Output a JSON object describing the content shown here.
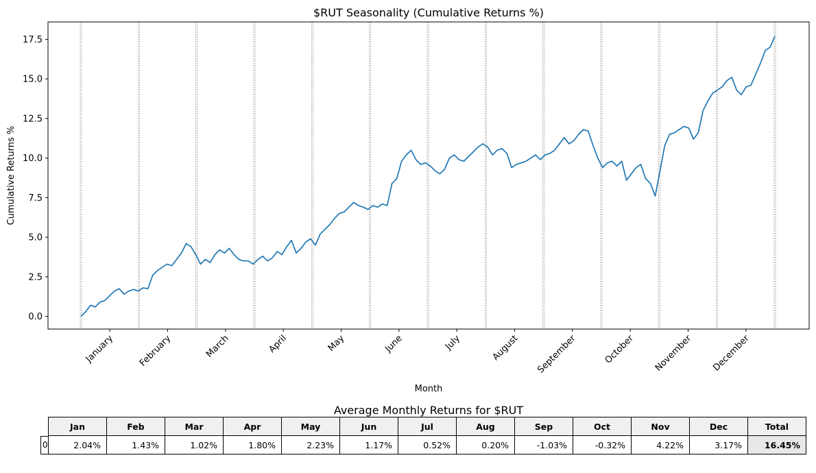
{
  "chart_data": {
    "type": "line",
    "title": "$RUT Seasonality (Cumulative Returns %)",
    "xlabel": "Month",
    "ylabel": "Cumulative Returns %",
    "ylim": [
      -0.8,
      18.6
    ],
    "yticks": [
      0.0,
      2.5,
      5.0,
      7.5,
      10.0,
      12.5,
      15.0,
      17.5
    ],
    "ytick_labels": [
      "0.0",
      "2.5",
      "5.0",
      "7.5",
      "10.0",
      "12.5",
      "15.0",
      "17.5"
    ],
    "month_labels": [
      "January",
      "February",
      "March",
      "April",
      "May",
      "June",
      "July",
      "August",
      "September",
      "October",
      "November",
      "December"
    ],
    "month_boundaries_note": "dashed vertical gridlines at each month boundary",
    "grid": "vertical dashed at month boundaries",
    "series": [
      {
        "x_start_month": 0,
        "values": [
          0.0,
          0.3,
          0.7,
          0.6,
          0.9,
          1.0,
          1.3,
          1.6,
          1.75,
          1.4,
          1.6,
          1.7,
          1.6,
          1.8,
          1.75,
          2.6,
          2.9,
          3.1,
          3.3,
          3.2,
          3.6,
          4.0,
          4.6,
          4.4,
          3.9,
          3.3,
          3.6,
          3.4,
          3.9,
          4.2,
          4.0,
          4.3,
          3.9,
          3.6,
          3.5,
          3.5,
          3.3,
          3.6,
          3.8,
          3.5,
          3.7,
          4.1,
          3.9,
          4.4,
          4.8,
          4.0,
          4.3,
          4.7,
          4.9,
          4.5,
          5.2,
          5.5,
          5.8,
          6.2,
          6.5,
          6.6,
          6.9,
          7.2,
          7.0,
          6.9,
          6.75,
          7.0,
          6.9,
          7.1,
          7.0,
          8.4,
          8.7,
          9.8,
          10.2,
          10.5,
          9.9,
          9.6,
          9.7,
          9.5,
          9.2,
          9.0,
          9.3,
          10.0,
          10.2,
          9.9,
          9.8,
          10.1,
          10.4,
          10.7,
          10.9,
          10.7,
          10.2,
          10.5,
          10.6,
          10.3,
          9.4,
          9.6,
          9.7,
          9.8,
          10.0,
          10.2,
          9.9,
          10.2,
          10.3,
          10.5,
          10.9,
          11.3,
          10.9,
          11.1,
          11.5,
          11.8,
          11.7,
          10.8,
          10.0,
          9.4,
          9.7,
          9.8,
          9.5,
          9.8,
          8.6,
          9.0,
          9.4,
          9.6,
          8.7,
          8.4,
          7.6,
          9.2,
          10.8,
          11.5,
          11.6,
          11.8,
          12.0,
          11.9,
          11.2,
          11.6,
          13.0,
          13.6,
          14.1,
          14.3,
          14.5,
          14.9,
          15.1,
          14.3,
          14.0,
          14.5,
          14.6,
          15.3,
          16.0,
          16.8,
          17.0,
          17.7
        ]
      }
    ]
  },
  "table": {
    "title": "Average Monthly Returns for $RUT",
    "row_index": "0",
    "headers": [
      "Jan",
      "Feb",
      "Mar",
      "Apr",
      "May",
      "Jun",
      "Jul",
      "Aug",
      "Sep",
      "Oct",
      "Nov",
      "Dec",
      "Total"
    ],
    "values": [
      "2.04%",
      "1.43%",
      "1.02%",
      "1.80%",
      "2.23%",
      "1.17%",
      "0.52%",
      "0.20%",
      "-1.03%",
      "-0.32%",
      "4.22%",
      "3.17%",
      "16.45%"
    ]
  },
  "colors": {
    "line": "#1f77b4",
    "header_bg": "#f0f0f0",
    "total_bg": "#e8e8e8"
  }
}
